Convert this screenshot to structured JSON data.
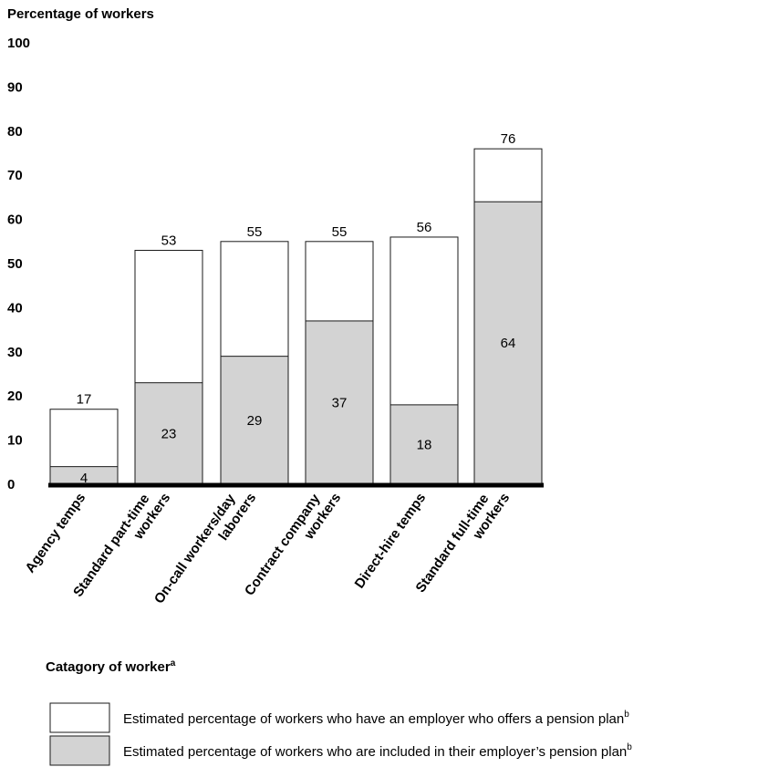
{
  "chart_data": {
    "type": "bar",
    "stacking": "overlay",
    "ylabel": "Percentage of workers",
    "xlabel": "Catagory of worker",
    "xlabel_superscript": "a",
    "ylim": [
      0,
      100
    ],
    "yticks": [
      "0",
      "10",
      "20",
      "30",
      "40",
      "50",
      "60",
      "70",
      "80",
      "90",
      "100"
    ],
    "categories": [
      [
        "Agency temps"
      ],
      [
        "Standard part-time",
        "workers"
      ],
      [
        "On-call workers/day",
        "laborers"
      ],
      [
        "Contract company",
        "workers"
      ],
      [
        "Direct-hire temps"
      ],
      [
        "Standard full-time",
        "workers"
      ]
    ],
    "series": [
      {
        "name": "Estimated percentage of workers who have an employer who offers a pension plan",
        "superscript": "b",
        "color": "#ffffff",
        "values": [
          17,
          53,
          55,
          55,
          56,
          76
        ]
      },
      {
        "name": "Estimated percentage of workers who are included in their employer’s pension plan",
        "superscript": "b",
        "color": "#d3d3d3",
        "values": [
          4,
          23,
          29,
          37,
          18,
          64
        ]
      }
    ],
    "grid": false,
    "legend": "bottom"
  }
}
